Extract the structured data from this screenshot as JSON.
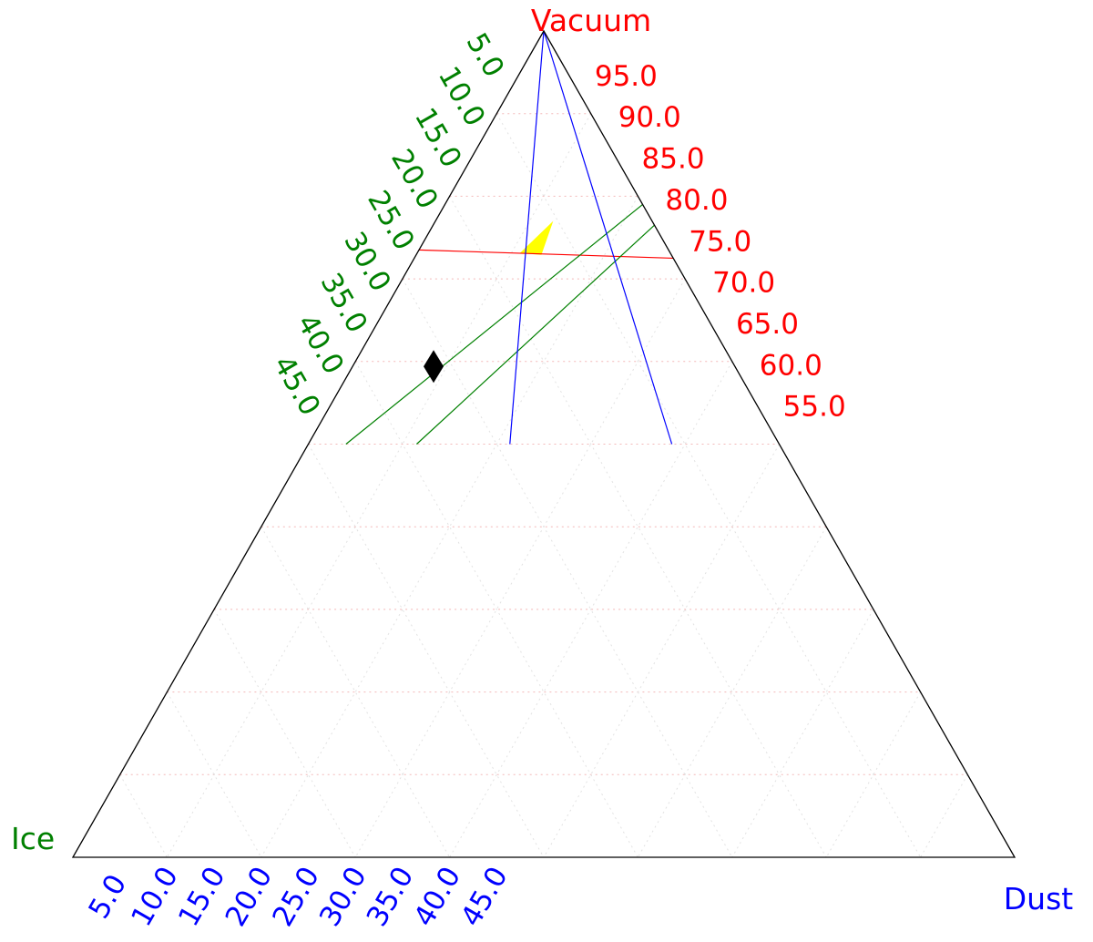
{
  "chart_data": {
    "type": "ternary",
    "corners": {
      "top": {
        "label": "Vacuum",
        "color": "#ff0000"
      },
      "left": {
        "label": "Ice",
        "color": "#008000"
      },
      "right": {
        "label": "Dust",
        "color": "#0000ff"
      }
    },
    "axes": {
      "vacuum": {
        "color": "#ff0000",
        "ticks": [
          "95.0",
          "90.0",
          "85.0",
          "80.0",
          "75.0",
          "70.0",
          "65.0",
          "60.0",
          "55.0"
        ],
        "values": [
          95,
          90,
          85,
          80,
          75,
          70,
          65,
          60,
          55
        ]
      },
      "ice": {
        "color": "#008000",
        "ticks": [
          "5.0",
          "10.0",
          "15.0",
          "20.0",
          "25.0",
          "30.0",
          "35.0",
          "40.0",
          "45.0"
        ],
        "values": [
          5,
          10,
          15,
          20,
          25,
          30,
          35,
          40,
          45
        ]
      },
      "dust": {
        "color": "#0000ff",
        "ticks": [
          "5.0",
          "10.0",
          "15.0",
          "20.0",
          "25.0",
          "30.0",
          "35.0",
          "40.0",
          "45.0"
        ],
        "values": [
          5,
          10,
          15,
          20,
          25,
          30,
          35,
          40,
          45
        ]
      }
    },
    "grid": true,
    "constraint_lines": [
      {
        "axis": "vacuum",
        "color": "#ff0000",
        "from": {
          "vacuum": 73.5,
          "ice": 26.5,
          "dust": 0
        },
        "to": {
          "vacuum": 72.5,
          "ice": 0,
          "dust": 27.5
        }
      },
      {
        "axis": "ice",
        "color": "#008000",
        "from": {
          "vacuum": 50,
          "ice": 46,
          "dust": 4
        },
        "to": {
          "vacuum": 79,
          "ice": 0,
          "dust": 21
        }
      },
      {
        "axis": "ice",
        "color": "#008000",
        "from": {
          "vacuum": 50,
          "ice": 38.5,
          "dust": 11.5
        },
        "to": {
          "vacuum": 76.5,
          "ice": 0,
          "dust": 23.5
        }
      },
      {
        "axis": "dust",
        "color": "#0000ff",
        "from": {
          "vacuum": 100,
          "ice": 0,
          "dust": 0
        },
        "to": {
          "vacuum": 50,
          "ice": 28.6,
          "dust": 21.4
        }
      },
      {
        "axis": "dust",
        "color": "#0000ff",
        "from": {
          "vacuum": 100,
          "ice": 0,
          "dust": 0
        },
        "to": {
          "vacuum": 50,
          "ice": 11.4,
          "dust": 38.6
        }
      }
    ],
    "region": {
      "color": "#ffff00",
      "vertices": [
        {
          "vacuum": 73.1,
          "ice": 16.0,
          "dust": 10.9
        },
        {
          "vacuum": 77.0,
          "ice": 10.5,
          "dust": 12.5
        },
        {
          "vacuum": 72.9,
          "ice": 13.8,
          "dust": 13.3
        }
      ]
    },
    "points": [
      {
        "marker": "diamond",
        "color": "#000000",
        "vacuum": 59.4,
        "ice": 32.0,
        "dust": 8.6
      }
    ]
  }
}
